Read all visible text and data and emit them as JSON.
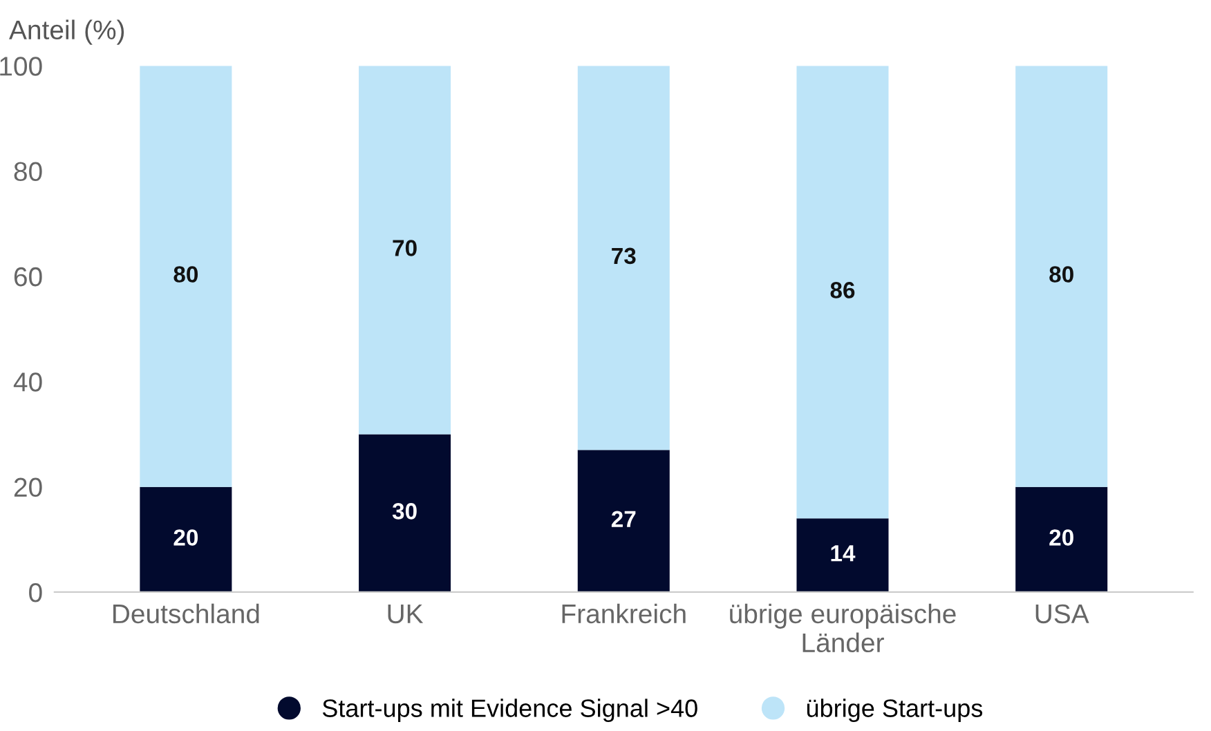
{
  "chart_data": {
    "type": "bar",
    "stacked": true,
    "ylabel": "Anteil (%)",
    "categories": [
      "Deutschland",
      "UK",
      "Frankreich",
      "übrige europäische\nLänder",
      "USA"
    ],
    "series": [
      {
        "name": "Start-ups mit Evidence Signal >40",
        "color": "#020a2e",
        "values": [
          20,
          30,
          27,
          14,
          20
        ]
      },
      {
        "name": "übrige Start-ups",
        "color": "#bde4f8",
        "values": [
          80,
          70,
          73,
          86,
          80
        ]
      }
    ],
    "ylim": [
      0,
      100
    ],
    "yticks": [
      0,
      20,
      40,
      60,
      80,
      100
    ],
    "grid": false,
    "legend": "bottom",
    "data_labels": true
  }
}
